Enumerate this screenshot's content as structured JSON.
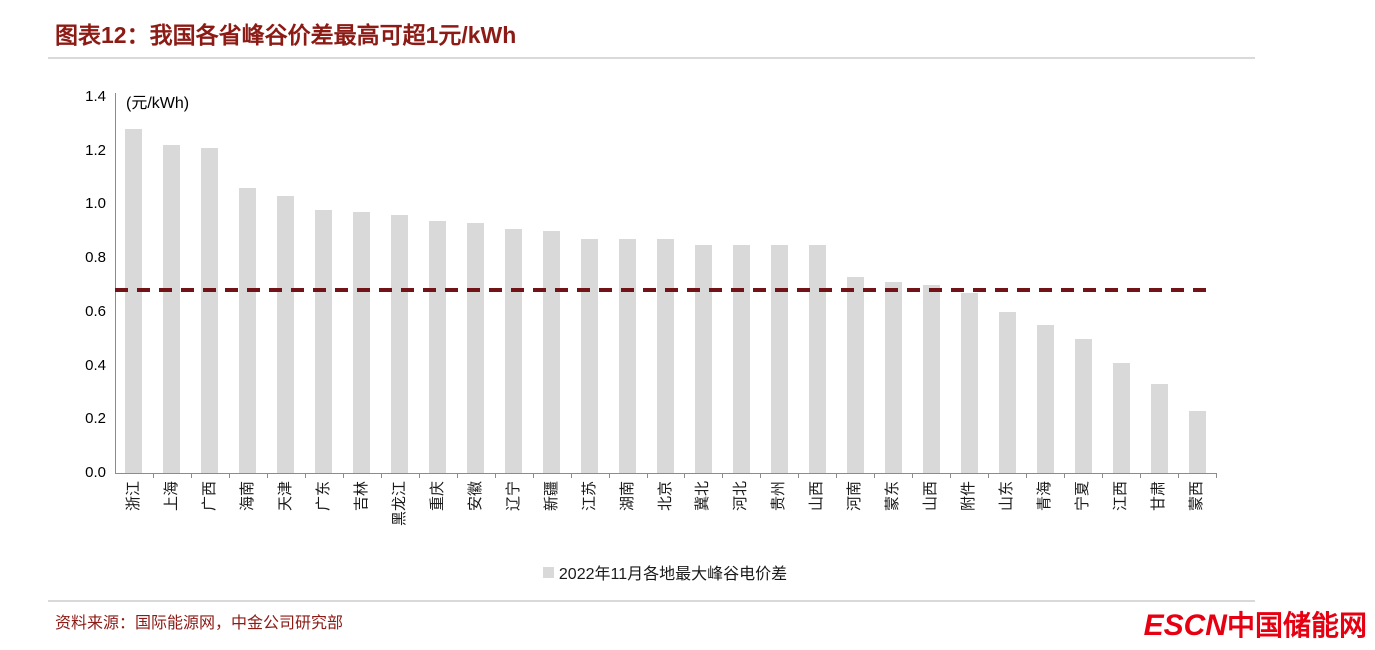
{
  "header": {
    "title": "图表12：我国各省峰谷价差最高可超1元/kWh"
  },
  "chart_data": {
    "type": "bar",
    "title": "图表12：我国各省峰谷价差最高可超1元/kWh",
    "unit_label": "(元/kWh)",
    "categories": [
      "浙江",
      "上海",
      "广西",
      "海南",
      "天津",
      "广东",
      "吉林",
      "黑龙江",
      "重庆",
      "安徽",
      "辽宁",
      "新疆",
      "江苏",
      "湖南",
      "北京",
      "冀北",
      "河北",
      "贵州",
      "山西",
      "河南",
      "蒙东",
      "山西",
      "附件",
      "山东",
      "青海",
      "宁夏",
      "江西",
      "甘肃",
      "蒙西"
    ],
    "values": [
      1.28,
      1.22,
      1.21,
      1.06,
      1.03,
      0.98,
      0.97,
      0.96,
      0.94,
      0.93,
      0.91,
      0.9,
      0.87,
      0.87,
      0.87,
      0.85,
      0.85,
      0.85,
      0.85,
      0.73,
      0.71,
      0.7,
      0.67,
      0.6,
      0.55,
      0.5,
      0.41,
      0.33,
      0.23
    ],
    "ylim": [
      0,
      1.4
    ],
    "y_tick_labels": [
      "0.0",
      "0.2",
      "0.4",
      "0.6",
      "0.8",
      "1.0",
      "1.2",
      "1.4"
    ],
    "grid": false,
    "reference_line": {
      "value": 0.68,
      "style": "dashed",
      "color": "#721318"
    },
    "legend_position": "bottom",
    "legend": [
      "2022年11月各地最大峰谷电价差"
    ],
    "bar_color": "#d9d9d9"
  },
  "footer": {
    "source": "资料来源：国际能源网，中金公司研究部"
  },
  "logo": {
    "latin": "ESCN",
    "cn": "中国储能网"
  },
  "colors": {
    "title_red": "#8c1a15",
    "logo_red": "#e60012",
    "bar_gray": "#d9d9d9",
    "axis_gray": "#8c8c8c",
    "dash_maroon": "#721318",
    "rule_gray": "#d9d9d9"
  }
}
